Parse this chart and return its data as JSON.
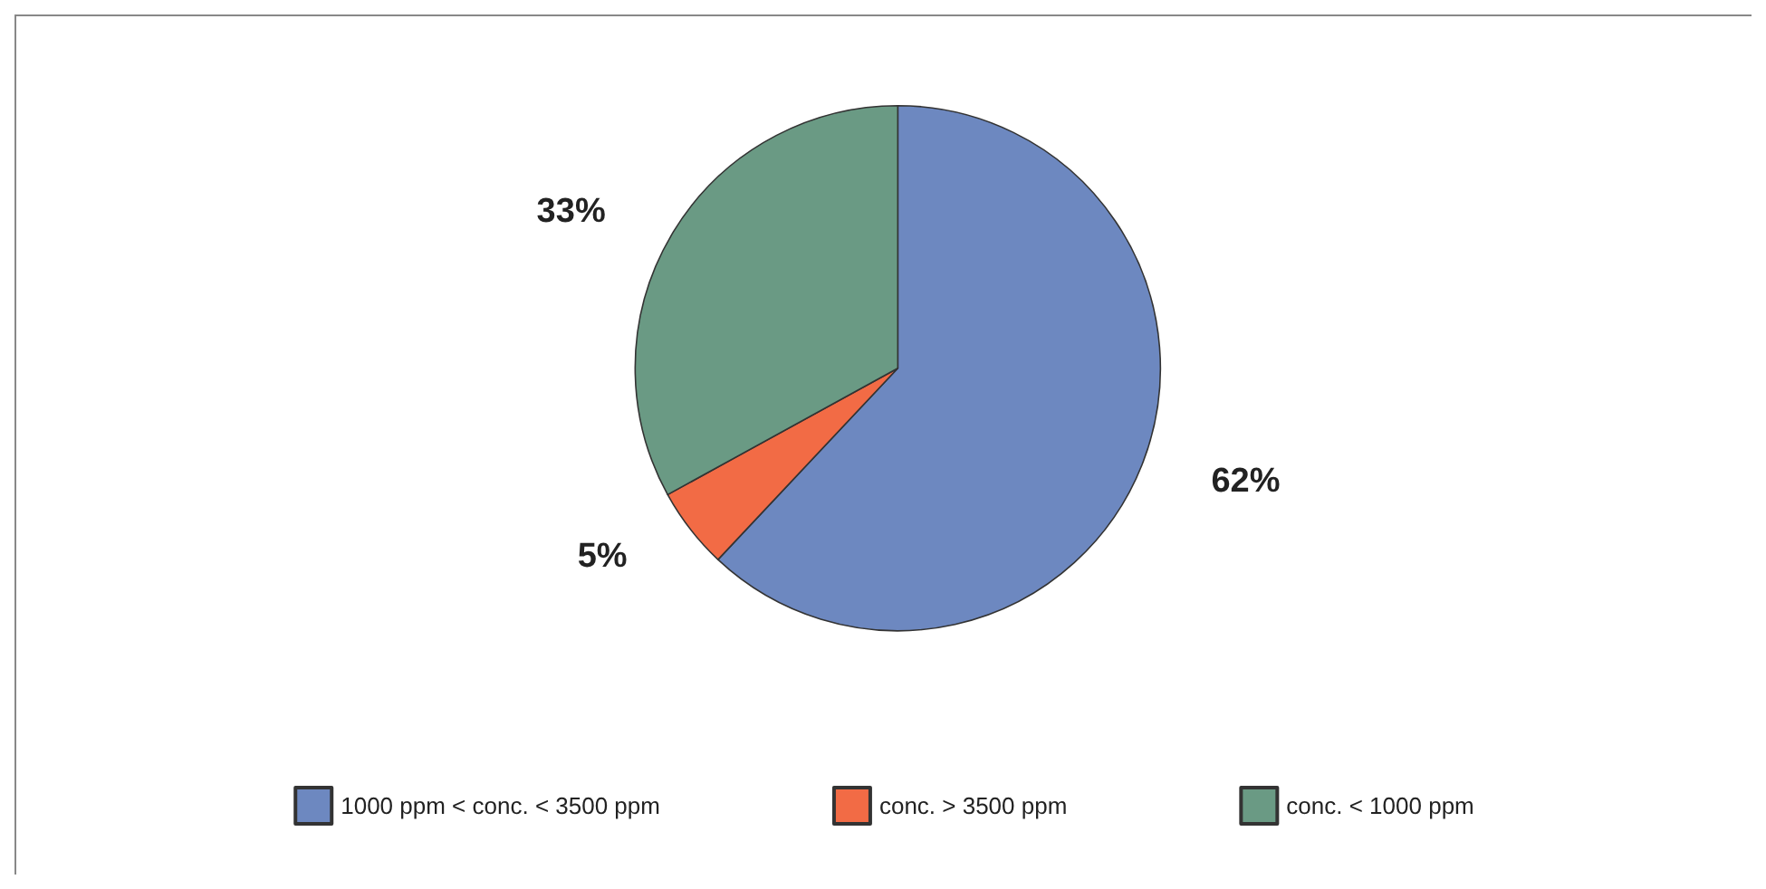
{
  "chart_data": {
    "type": "pie",
    "categories": [
      "1000 ppm < conc. < 3500 ppm",
      "conc. > 3500 ppm",
      "conc. < 1000 ppm"
    ],
    "values": [
      62,
      5,
      33
    ],
    "colors": [
      "#6d88c0",
      "#f26b45",
      "#6a9a84"
    ],
    "value_labels": [
      "62%",
      "5%",
      "33%"
    ],
    "legend": "bottom"
  }
}
